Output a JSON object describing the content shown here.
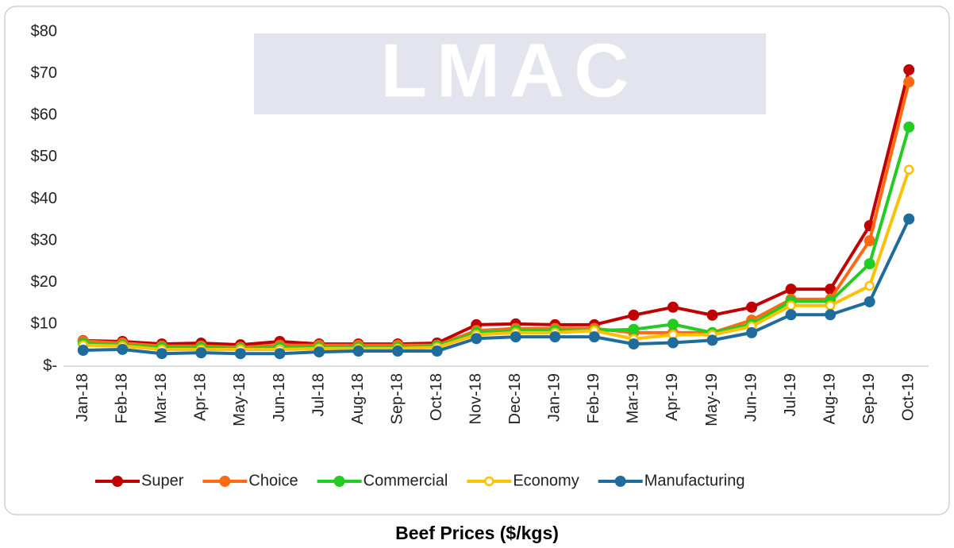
{
  "chart_data": {
    "type": "line",
    "title": "Beef Prices ($/kgs)",
    "logo": "LMAC",
    "categories": [
      "Jan-18",
      "Feb-18",
      "Mar-18",
      "Apr-18",
      "May-18",
      "Jun-18",
      "Jul-18",
      "Aug-18",
      "Sep-18",
      "Oct-18",
      "Nov-18",
      "Dec-18",
      "Jan-19",
      "Feb-19",
      "Mar-19",
      "Apr-19",
      "May-19",
      "Jun-19",
      "Jul-19",
      "Aug-19",
      "Sep-19",
      "Oct-19"
    ],
    "series": [
      {
        "name": "Super",
        "color": "#c00000",
        "hollow": false,
        "values": [
          6.1,
          5.9,
          5.3,
          5.5,
          5.1,
          5.9,
          5.3,
          5.3,
          5.3,
          5.5,
          9.9,
          10.1,
          9.9,
          9.9,
          12.2,
          14.1,
          12.2,
          14.1,
          18.4,
          18.4,
          33.6,
          70.9
        ]
      },
      {
        "name": "Choice",
        "color": "#ff6a13",
        "hollow": false,
        "values": [
          6,
          5.5,
          4.8,
          4.8,
          4.5,
          5,
          5,
          5,
          5,
          5,
          8.5,
          9,
          9,
          9,
          8,
          8,
          8,
          11,
          16,
          16,
          30,
          68
        ]
      },
      {
        "name": "Commercial",
        "color": "#22cc22",
        "hollow": false,
        "values": [
          5.5,
          5,
          4.5,
          4.5,
          4.2,
          4.5,
          4.5,
          4.5,
          4.5,
          4.8,
          8,
          8.5,
          8.5,
          8.5,
          8.8,
          10,
          8,
          10,
          15.5,
          15.5,
          24.5,
          57.2
        ]
      },
      {
        "name": "Economy",
        "color": "#ffc000",
        "hollow": true,
        "values": [
          5,
          4.8,
          4,
          4,
          4,
          4,
          4.2,
          4.2,
          4.2,
          4.5,
          7.5,
          8,
          8,
          8.5,
          6.5,
          7.5,
          7.5,
          9.5,
          14.5,
          14.5,
          19.2,
          47
        ]
      },
      {
        "name": "Manufacturing",
        "color": "#1f6c9c",
        "hollow": false,
        "values": [
          3.8,
          4,
          3,
          3.2,
          3,
          3,
          3.4,
          3.6,
          3.6,
          3.6,
          6.6,
          7,
          7,
          7,
          5.3,
          5.6,
          6.2,
          8,
          12.3,
          12.3,
          15.4,
          35.2
        ]
      }
    ],
    "ylim": [
      0,
      80
    ],
    "yticks": [
      {
        "value": 0,
        "label": "$-"
      },
      {
        "value": 10,
        "label": "$10"
      },
      {
        "value": 20,
        "label": "$20"
      },
      {
        "value": 30,
        "label": "$30"
      },
      {
        "value": 40,
        "label": "$40"
      },
      {
        "value": 50,
        "label": "$50"
      },
      {
        "value": 60,
        "label": "$60"
      },
      {
        "value": 70,
        "label": "$70"
      },
      {
        "value": 80,
        "label": "$80"
      }
    ],
    "grid": false,
    "legend": "bottom"
  }
}
